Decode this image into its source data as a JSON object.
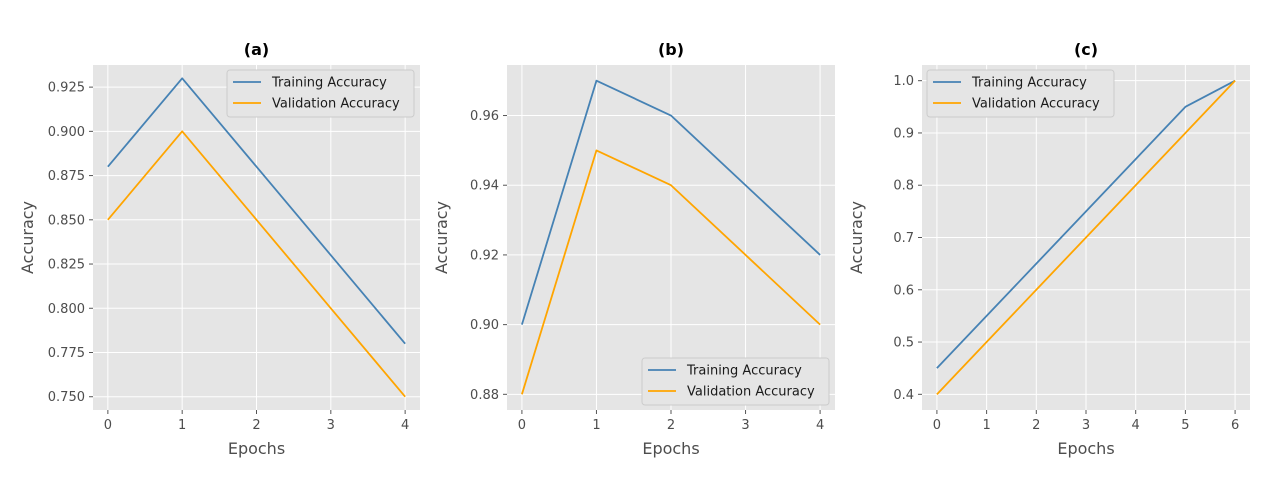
{
  "chart_data": [
    {
      "type": "line",
      "title": "(a)",
      "xlabel": "Epochs",
      "ylabel": "Accuracy",
      "x": [
        0,
        1,
        2,
        3,
        4
      ],
      "xlim": [
        -0.2,
        4.2
      ],
      "ylim": [
        0.7425,
        0.9375
      ],
      "xticks": [
        0,
        1,
        2,
        3,
        4
      ],
      "yticks": [
        0.75,
        0.775,
        0.8,
        0.825,
        0.85,
        0.875,
        0.9,
        0.925
      ],
      "ytick_labels": [
        "0.750",
        "0.775",
        "0.800",
        "0.825",
        "0.850",
        "0.875",
        "0.900",
        "0.925"
      ],
      "grid": true,
      "legend_position": "top-right",
      "series": [
        {
          "name": "Training Accuracy",
          "color": "#4682b4",
          "values": [
            0.88,
            0.93,
            0.88,
            0.83,
            0.78
          ]
        },
        {
          "name": "Validation Accuracy",
          "color": "#ffa500",
          "values": [
            0.85,
            0.9,
            0.85,
            0.8,
            0.75
          ]
        }
      ]
    },
    {
      "type": "line",
      "title": "(b)",
      "xlabel": "Epochs",
      "ylabel": "Accuracy",
      "x": [
        0,
        1,
        2,
        3,
        4
      ],
      "xlim": [
        -0.2,
        4.2
      ],
      "ylim": [
        0.8755,
        0.9745
      ],
      "xticks": [
        0,
        1,
        2,
        3,
        4
      ],
      "yticks": [
        0.88,
        0.9,
        0.92,
        0.94,
        0.96
      ],
      "ytick_labels": [
        "0.88",
        "0.90",
        "0.92",
        "0.94",
        "0.96"
      ],
      "grid": true,
      "legend_position": "bottom-right",
      "series": [
        {
          "name": "Training Accuracy",
          "color": "#4682b4",
          "values": [
            0.9,
            0.97,
            0.96,
            0.94,
            0.92
          ]
        },
        {
          "name": "Validation Accuracy",
          "color": "#ffa500",
          "values": [
            0.88,
            0.95,
            0.94,
            0.92,
            0.9
          ]
        }
      ]
    },
    {
      "type": "line",
      "title": "(c)",
      "xlabel": "Epochs",
      "ylabel": "Accuracy",
      "x": [
        0,
        1,
        2,
        3,
        4,
        5,
        6
      ],
      "xlim": [
        -0.3,
        6.3
      ],
      "ylim": [
        0.37,
        1.03
      ],
      "xticks": [
        0,
        1,
        2,
        3,
        4,
        5,
        6
      ],
      "yticks": [
        0.4,
        0.5,
        0.6,
        0.7,
        0.8,
        0.9,
        1.0
      ],
      "ytick_labels": [
        "0.4",
        "0.5",
        "0.6",
        "0.7",
        "0.8",
        "0.9",
        "1.0"
      ],
      "grid": true,
      "legend_position": "top-left",
      "series": [
        {
          "name": "Training Accuracy",
          "color": "#4682b4",
          "values": [
            0.45,
            0.55,
            0.65,
            0.75,
            0.85,
            0.95,
            1.0
          ]
        },
        {
          "name": "Validation Accuracy",
          "color": "#ffa500",
          "values": [
            0.4,
            0.5,
            0.6,
            0.7,
            0.8,
            0.9,
            1.0
          ]
        }
      ]
    }
  ]
}
